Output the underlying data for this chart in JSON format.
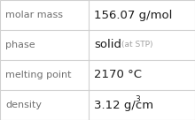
{
  "rows": [
    {
      "label": "molar mass",
      "value": "156.07 g/mol",
      "value_suffix": null,
      "superscript": null
    },
    {
      "label": "phase",
      "value": "solid",
      "value_suffix": "(at STP)",
      "superscript": null
    },
    {
      "label": "melting point",
      "value": "2170 °C",
      "value_suffix": null,
      "superscript": null
    },
    {
      "label": "density",
      "value": "3.12 g/cm",
      "value_suffix": null,
      "superscript": "3"
    }
  ],
  "n_rows": 4,
  "background_color": "#ffffff",
  "border_color": "#d0d0d0",
  "label_color": "#707070",
  "value_color": "#1a1a1a",
  "suffix_color": "#a0a0a0",
  "col_split": 0.455,
  "label_fontsize": 8.0,
  "value_fontsize": 9.5,
  "suffix_fontsize": 6.5,
  "super_fontsize": 6.5
}
